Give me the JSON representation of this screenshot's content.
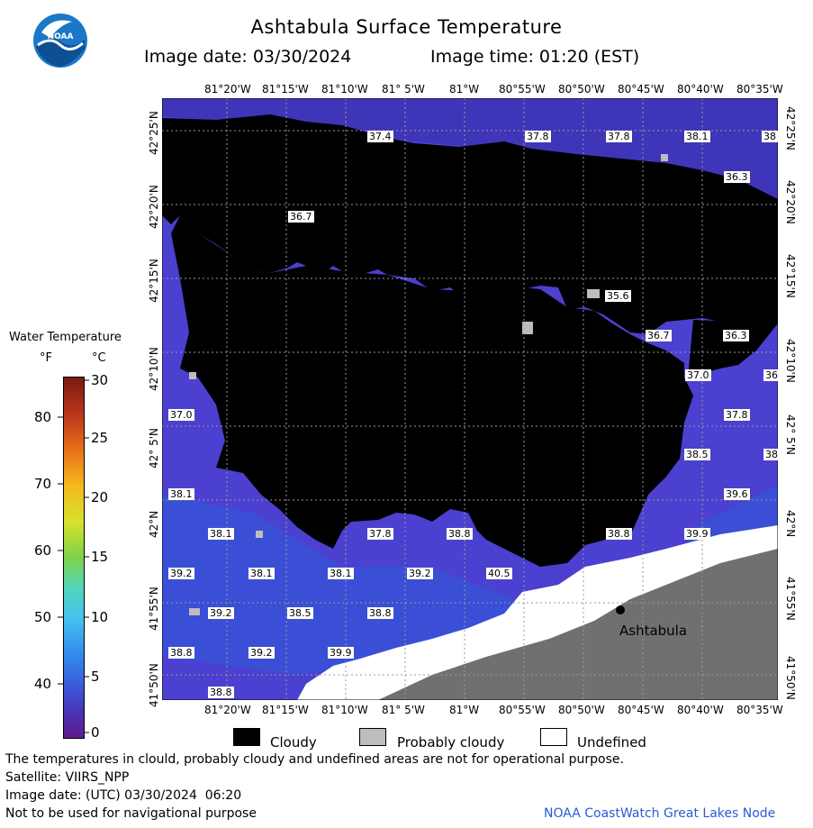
{
  "header": {
    "title": "Ashtabula Surface Temperature",
    "image_date": "Image date: 03/30/2024",
    "image_time": "Image time: 01:20 (EST)"
  },
  "logo": {
    "text": "NOAA"
  },
  "axes": {
    "lon_labels": [
      "81°20'W",
      "81°15'W",
      "81°10'W",
      "81° 5'W",
      "81°W",
      "80°55'W",
      "80°50'W",
      "80°45'W",
      "80°40'W",
      "80°35'W"
    ],
    "lat_labels": [
      "42°25'N",
      "42°20'N",
      "42°15'N",
      "42°10'N",
      "42° 5'N",
      "42°N",
      "41°55'N",
      "41°50'N"
    ]
  },
  "temperature_labels": [
    "37.4",
    "37.8",
    "37.8",
    "38.1",
    "38",
    "36.3",
    "36.7",
    "35.6",
    "36.7",
    "36.3",
    "37.0",
    "36",
    "37.8",
    "37.0",
    "38.5",
    "38",
    "39.6",
    "38.1",
    "38.1",
    "37.8",
    "38.8",
    "38.8",
    "39.9",
    "39.2",
    "38.1",
    "38.1",
    "39.2",
    "40.5",
    "39.2",
    "38.5",
    "38.8",
    "38.8",
    "39.2",
    "39.9",
    "38.8"
  ],
  "place_label": "Ashtabula",
  "colorbar": {
    "title": "Water Temperature",
    "unit_f": "°F",
    "unit_c": "°C",
    "f_ticks": [
      "80",
      "70",
      "60",
      "50",
      "40"
    ],
    "c_ticks": [
      "30",
      "25",
      "20",
      "15",
      "10",
      "5",
      "0"
    ]
  },
  "legend": {
    "cloudy": "Cloudy",
    "probably_cloudy": "Probably cloudy",
    "undefined": "Undefined"
  },
  "footer": {
    "disclaimer": "The temperatures in clould, probably cloudy and undefined areas are not for operational purpose.",
    "satellite": "Satellite: VIIRS_NPP",
    "utc_date": "Image date: (UTC) 03/30/2024  06:20",
    "navigation": "Not to be used for navigational purpose",
    "credit": "NOAA CoastWatch Great Lakes Node"
  },
  "colors": {
    "water": "#4a3fcc",
    "cloud": "#000000",
    "probably_cloudy": "#bdbdbd",
    "land": "#6e6e6e",
    "undefined": "#ffffff",
    "credit": "#2a5bd7"
  }
}
